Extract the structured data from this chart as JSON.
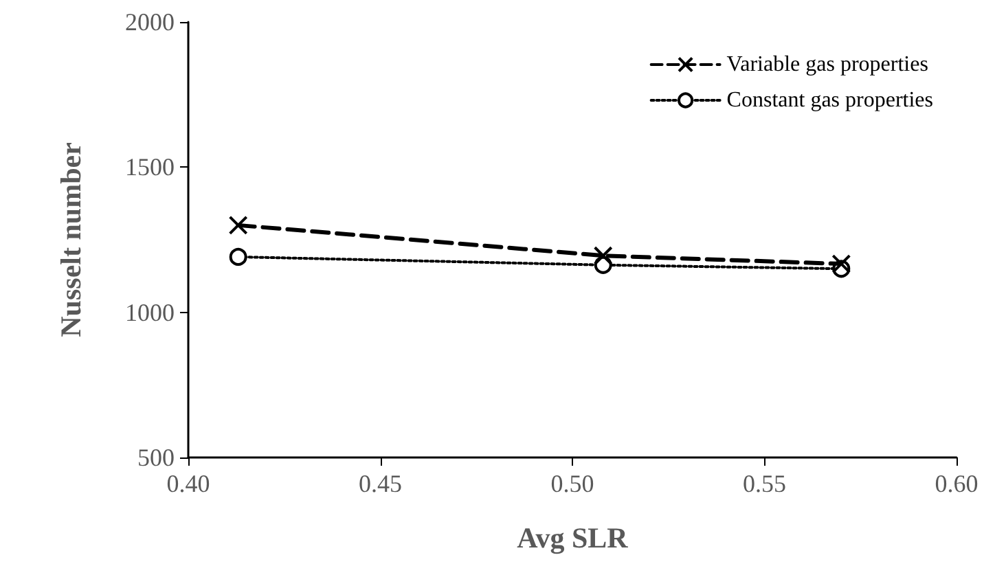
{
  "chart_data": {
    "type": "line",
    "xlabel": "Avg SLR",
    "ylabel": "Nusselt number",
    "xlim": [
      0.4,
      0.6
    ],
    "xticks": [
      {
        "value": 0.4,
        "label": "0.40"
      },
      0.45,
      {
        "value": 0.5,
        "label": "0.50"
      },
      0.55,
      {
        "value": 0.6,
        "label": "0.60"
      }
    ],
    "ylim": [
      500,
      2000
    ],
    "yticks": [
      500,
      1000,
      1500,
      2000
    ],
    "x": [
      0.413,
      0.508,
      0.57
    ],
    "series": [
      {
        "name": "Variable gas properties",
        "color": "#000000",
        "values": [
          1300,
          1195,
          1167
        ],
        "marker": "cross",
        "line_style": "dashed"
      },
      {
        "name": "Constant gas properties",
        "color": "#000000",
        "values": [
          1191,
          1163,
          1150
        ],
        "marker": "circle",
        "line_style": "dotted"
      }
    ],
    "grid": false,
    "legend": "top right"
  }
}
